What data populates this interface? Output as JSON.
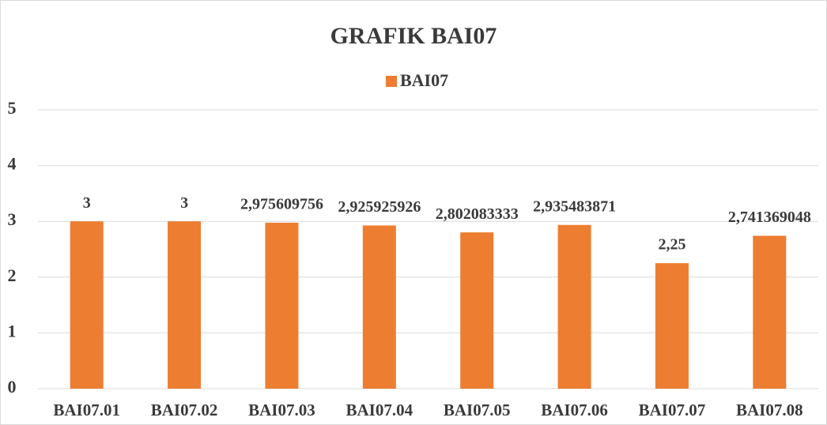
{
  "chart_data": {
    "type": "bar",
    "title": "GRAFIK BAI07",
    "categories": [
      "BAI07.01",
      "BAI07.02",
      "BAI07.03",
      "BAI07.04",
      "BAI07.05",
      "BAI07.06",
      "BAI07.07",
      "BAI07.08"
    ],
    "series": [
      {
        "name": "BAI07",
        "color": "#ed7d31",
        "values": [
          3,
          3,
          2.975609756,
          2.925925926,
          2.802083333,
          2.935483871,
          2.25,
          2.741369048
        ],
        "value_labels": [
          "3",
          "3",
          "2,975609756",
          "2,925925926",
          "2,802083333",
          "2,935483871",
          "2,25",
          "2,741369048"
        ]
      }
    ],
    "ylim": [
      0,
      5
    ],
    "yticks": [
      0,
      1,
      2,
      3,
      4,
      5
    ],
    "grid": true,
    "legend": "top"
  }
}
